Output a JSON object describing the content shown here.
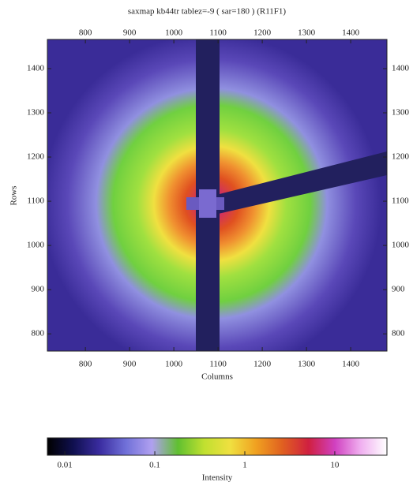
{
  "chart_data": {
    "type": "heatmap",
    "title": "saxmap kb44tr tablez=-9 ( sar=180 ) (R11F1)",
    "x_label": "Columns",
    "y_label": "Rows",
    "xlim": [
      714,
      1482
    ],
    "xticks": [
      800,
      900,
      1000,
      1100,
      1200,
      1300,
      1400
    ],
    "ylim": [
      761,
      1466
    ],
    "yticks": [
      800,
      900,
      1000,
      1100,
      1200,
      1300,
      1400
    ],
    "grid": false,
    "colorbar": {
      "label": "Intensity",
      "log": true,
      "lim": [
        0.0064,
        38
      ],
      "ticks": [
        0.01,
        0.1,
        1,
        10
      ],
      "colors": [
        "#000000",
        "#101050",
        "#3a2ca0",
        "#7070d8",
        "#b0a0f0",
        "#60c030",
        "#c0e030",
        "#f0e040",
        "#f0a020",
        "#e06020",
        "#d02040",
        "#d040c0",
        "#f0b0f0",
        "#ffffff"
      ]
    }
  }
}
